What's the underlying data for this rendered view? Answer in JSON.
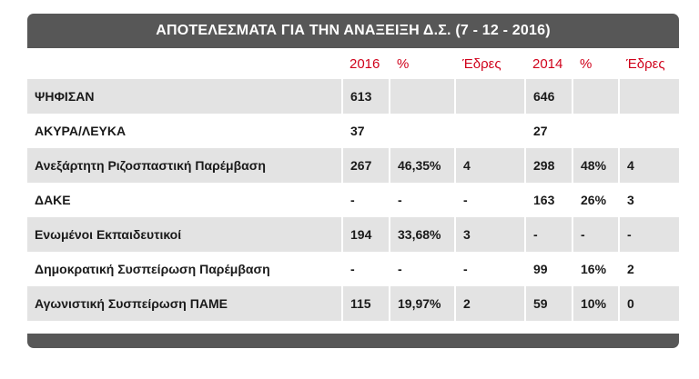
{
  "title": "ΑΠΟΤΕΛΕΣΜΑΤΑ ΓΙΑ ΤΗΝ ΑΝΑΞΕΙΞΗ Δ.Σ. (7 - 12 - 2016)",
  "header": {
    "col_label": "",
    "year1": "2016",
    "pct1": "%",
    "seats1": "Έδρες",
    "year2": "2014",
    "pct2": "%",
    "seats2": "Έδρες"
  },
  "colors": {
    "header_text": "#d0021b",
    "bar": "#575757",
    "shaded_row": "#e3e3e3"
  },
  "rows": [
    {
      "label": "ΨΗΦΙΣΑΝ",
      "v2016": "613",
      "p2016": "",
      "s2016": "",
      "v2014": "646",
      "p2014": "",
      "s2014": ""
    },
    {
      "label": "ΑΚΥΡΑ/ΛΕΥΚΑ",
      "v2016": "37",
      "p2016": "",
      "s2016": "",
      "v2014": "27",
      "p2014": "",
      "s2014": ""
    },
    {
      "label": "Ανεξάρτητη Ριζοσπαστική Παρέμβαση",
      "v2016": "267",
      "p2016": "46,35%",
      "s2016": "4",
      "v2014": "298",
      "p2014": "48%",
      "s2014": "4"
    },
    {
      "label": "ΔΑΚΕ",
      "v2016": "-",
      "p2016": "-",
      "s2016": "-",
      "v2014": "163",
      "p2014": "26%",
      "s2014": "3"
    },
    {
      "label": "Ενωμένοι Εκπαιδευτικοί",
      "v2016": "194",
      "p2016": "33,68%",
      "s2016": "3",
      "v2014": "-",
      "p2014": "-",
      "s2014": "-"
    },
    {
      "label": "Δημοκρατική Συσπείρωση Παρέμβαση",
      "v2016": "-",
      "p2016": "-",
      "s2016": "-",
      "v2014": "99",
      "p2014": "16%",
      "s2014": "2"
    },
    {
      "label": "Αγωνιστική Συσπείρωση ΠΑΜΕ",
      "v2016": "115",
      "p2016": "19,97%",
      "s2016": "2",
      "v2014": "59",
      "p2014": "10%",
      "s2014": "0"
    }
  ]
}
